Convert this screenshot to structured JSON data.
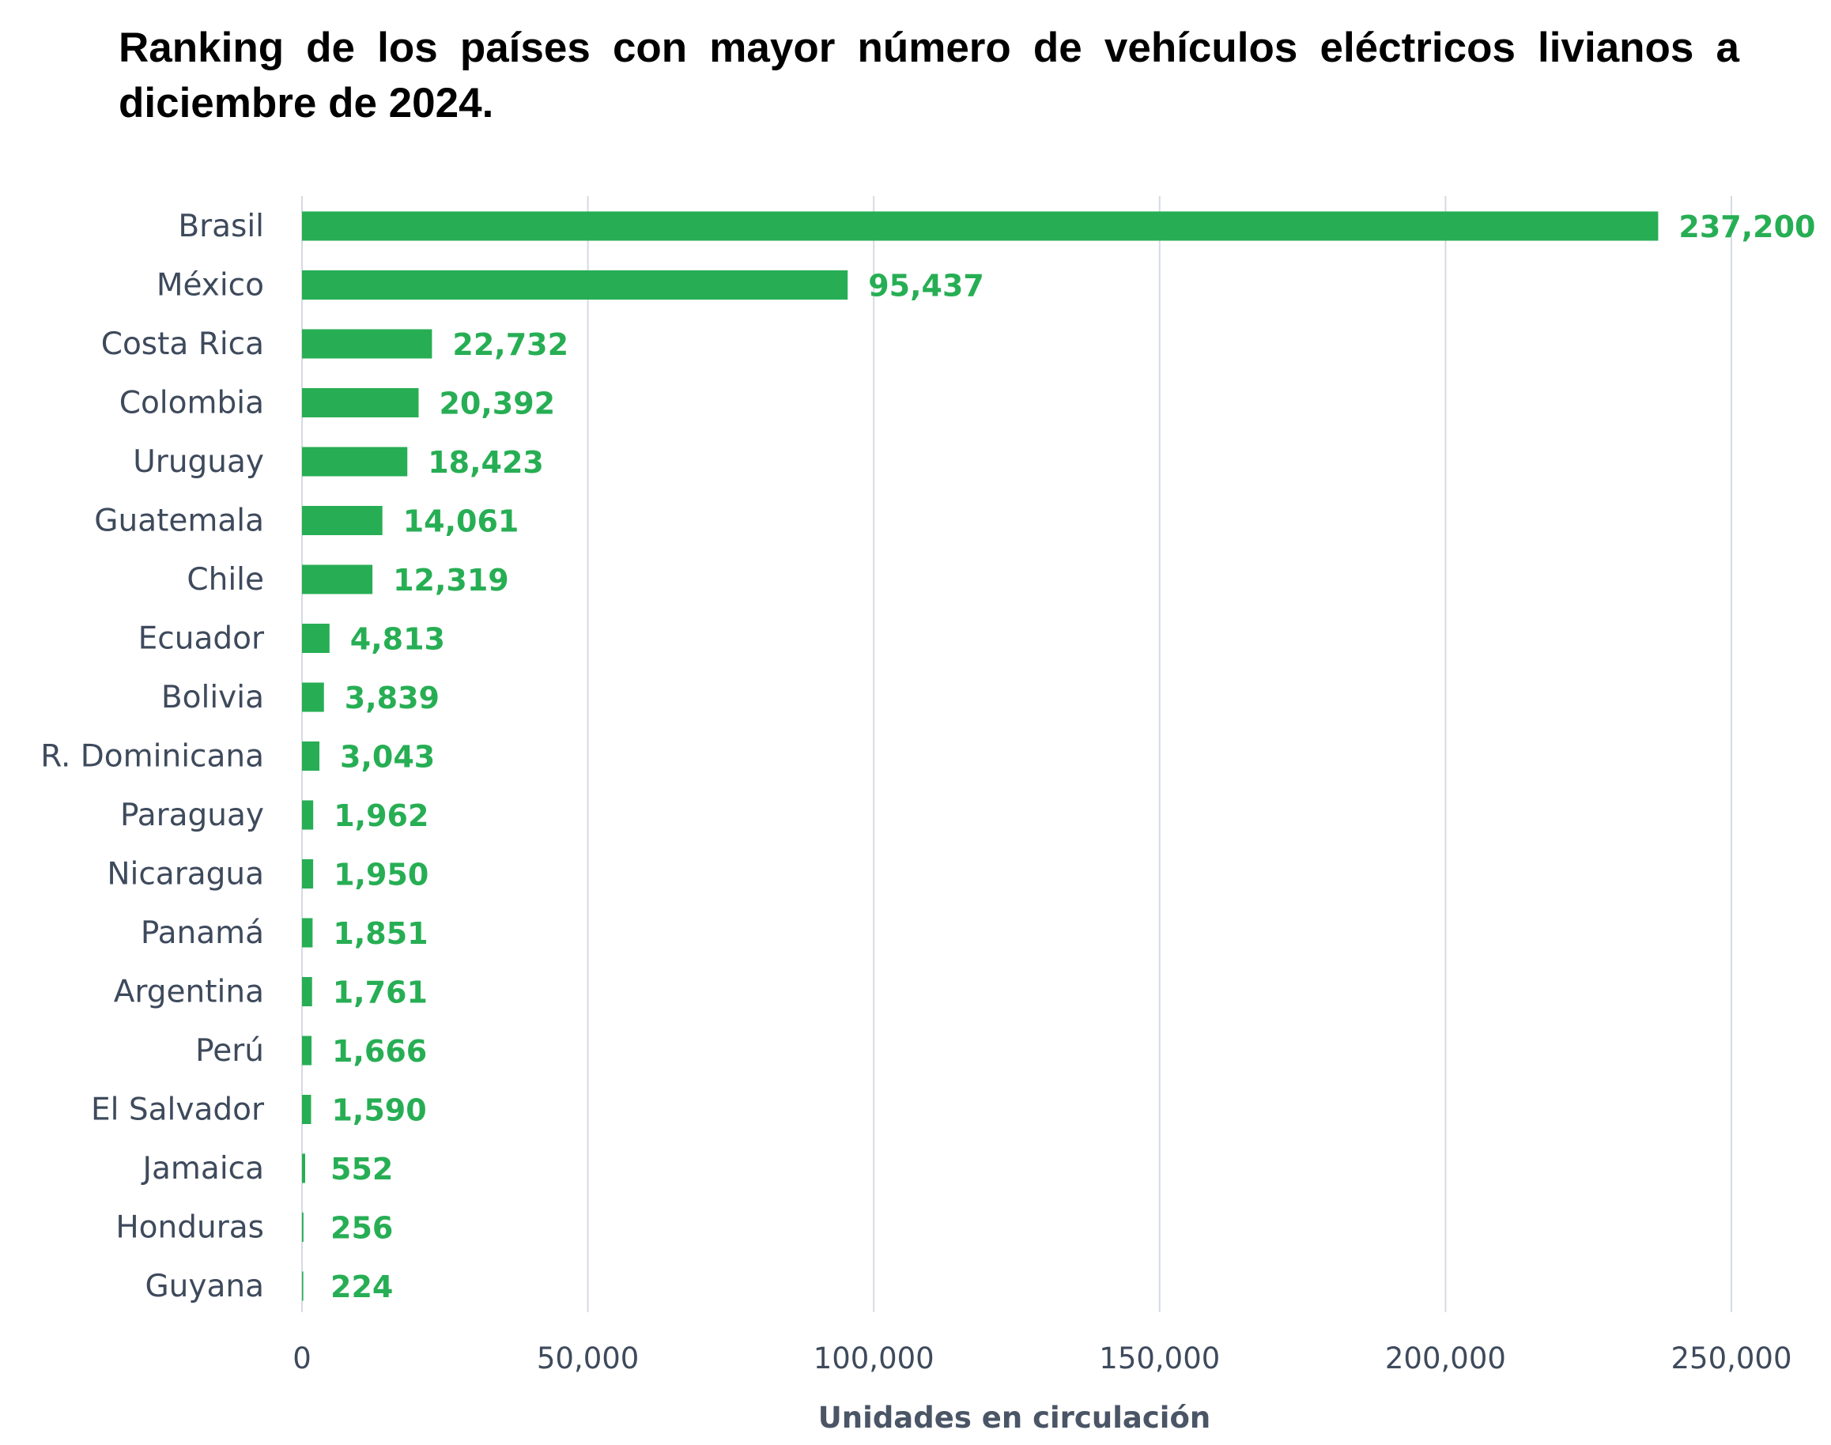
{
  "chart_data": {
    "type": "bar",
    "orientation": "horizontal",
    "title": "Ranking de los países con mayor número de vehículos eléctricos livianos a diciembre de 2024.",
    "xlabel": "Unidades en circulación",
    "ylabel": "",
    "categories": [
      "Brasil",
      "México",
      "Costa Rica",
      "Colombia",
      "Uruguay",
      "Guatemala",
      "Chile",
      "Ecuador",
      "Bolivia",
      "R. Dominicana",
      "Paraguay",
      "Nicaragua",
      "Panamá",
      "Argentina",
      "Perú",
      "El Salvador",
      "Jamaica",
      "Honduras",
      "Guyana"
    ],
    "values": [
      237200,
      95437,
      22732,
      20392,
      18423,
      14061,
      12319,
      4813,
      3839,
      3043,
      1962,
      1950,
      1851,
      1761,
      1666,
      1590,
      552,
      256,
      224
    ],
    "data_labels": [
      "237,200",
      "95,437",
      "22,732",
      "20,392",
      "18,423",
      "14,061",
      "12,319",
      "4,813",
      "3,839",
      "3,043",
      "1,962",
      "1,950",
      "1,851",
      "1,761",
      "1,666",
      "1,590",
      "552",
      "256",
      "224"
    ],
    "xticks": [
      0,
      50000,
      100000,
      150000,
      200000,
      250000
    ],
    "xtick_labels": [
      "0",
      "50,000",
      "100,000",
      "150,000",
      "200,000",
      "250,000"
    ],
    "xlim": [
      0,
      250000
    ],
    "grid": "vertical",
    "legend": "none",
    "bar_color": "#27ae54",
    "label_color": "#27ae54",
    "grid_color": "#d6dae2"
  }
}
